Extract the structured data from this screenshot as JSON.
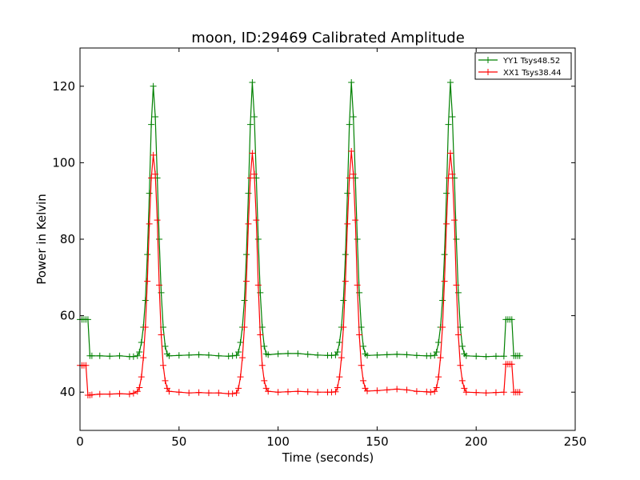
{
  "chart_data": {
    "type": "line",
    "title": "moon, ID:29469 Calibrated Amplitude",
    "xlabel": "Time (seconds)",
    "ylabel": "Power in Kelvin",
    "xlim": [
      0,
      250
    ],
    "ylim": [
      30,
      130
    ],
    "xticks": [
      0,
      50,
      100,
      150,
      200,
      250
    ],
    "yticks": [
      40,
      60,
      80,
      100,
      120
    ],
    "grid": false,
    "legend_position": "top-right",
    "marker": "+",
    "series": [
      {
        "name": "YY1 Tsys48.52",
        "color": "#008000",
        "x": [
          0,
          1,
          2,
          3,
          4,
          5,
          6,
          10,
          15,
          20,
          25,
          27,
          29,
          30,
          31,
          32,
          33,
          34,
          35,
          36,
          37,
          38,
          39,
          40,
          41,
          42,
          43,
          44,
          45,
          50,
          55,
          60,
          65,
          70,
          75,
          77,
          79,
          80,
          81,
          82,
          83,
          84,
          85,
          86,
          87,
          88,
          89,
          90,
          91,
          92,
          93,
          94,
          95,
          100,
          105,
          110,
          115,
          120,
          125,
          127,
          129,
          130,
          131,
          132,
          133,
          134,
          135,
          136,
          137,
          138,
          139,
          140,
          141,
          142,
          143,
          144,
          145,
          150,
          155,
          160,
          165,
          170,
          175,
          177,
          179,
          180,
          181,
          182,
          183,
          184,
          185,
          186,
          187,
          188,
          189,
          190,
          191,
          192,
          193,
          194,
          195,
          200,
          205,
          210,
          214,
          215,
          216,
          217,
          218,
          219,
          220,
          221,
          222
        ],
        "y": [
          59,
          59,
          59,
          59,
          59,
          49.5,
          49.5,
          49.5,
          49.4,
          49.5,
          49.3,
          49.3,
          49.5,
          50.5,
          53,
          57,
          64,
          76,
          92,
          110,
          120,
          112,
          96,
          80,
          66,
          57,
          52,
          50,
          49.5,
          49.6,
          49.7,
          49.8,
          49.7,
          49.5,
          49.4,
          49.5,
          49.6,
          50.5,
          53,
          57,
          64,
          76,
          92,
          110,
          121,
          112,
          96,
          80,
          66,
          57,
          52,
          50,
          49.8,
          50,
          50.1,
          50.1,
          49.9,
          49.7,
          49.6,
          49.6,
          49.7,
          50.5,
          53,
          57,
          64,
          76,
          92,
          110,
          121,
          112,
          96,
          80,
          66,
          57,
          52,
          50,
          49.6,
          49.7,
          49.8,
          49.9,
          49.8,
          49.6,
          49.5,
          49.5,
          49.6,
          50.5,
          53,
          57,
          64,
          76,
          92,
          110,
          121,
          112,
          96,
          80,
          66,
          57,
          52,
          50,
          49.5,
          49.4,
          49.3,
          49.4,
          49.4,
          59,
          59,
          59,
          59,
          49.5,
          49.5,
          49.5,
          49.5
        ]
      },
      {
        "name": "XX1 Tsys38.44",
        "color": "#ff0000",
        "x": [
          0,
          1,
          2,
          3,
          4,
          5,
          6,
          10,
          15,
          20,
          25,
          27,
          29,
          30,
          31,
          32,
          33,
          34,
          35,
          36,
          37,
          38,
          39,
          40,
          41,
          42,
          43,
          44,
          45,
          50,
          55,
          60,
          65,
          70,
          75,
          77,
          79,
          80,
          81,
          82,
          83,
          84,
          85,
          86,
          87,
          88,
          89,
          90,
          91,
          92,
          93,
          94,
          95,
          100,
          105,
          110,
          115,
          120,
          125,
          127,
          129,
          130,
          131,
          132,
          133,
          134,
          135,
          136,
          137,
          138,
          139,
          140,
          141,
          142,
          143,
          144,
          145,
          150,
          155,
          160,
          165,
          170,
          175,
          177,
          179,
          180,
          181,
          182,
          183,
          184,
          185,
          186,
          187,
          188,
          189,
          190,
          191,
          192,
          193,
          194,
          195,
          200,
          205,
          210,
          214,
          215,
          216,
          217,
          218,
          219,
          220,
          221,
          222
        ],
        "y": [
          47,
          47,
          47,
          47,
          39.2,
          39.2,
          39.3,
          39.5,
          39.5,
          39.6,
          39.5,
          39.7,
          40.2,
          41.2,
          44,
          49,
          57,
          69,
          84,
          96,
          102,
          97,
          85,
          68,
          55,
          47,
          43,
          41,
          40.2,
          40,
          39.8,
          39.9,
          39.8,
          39.8,
          39.6,
          39.6,
          39.8,
          41,
          44,
          49,
          57,
          69,
          84,
          96,
          102.5,
          97,
          85,
          68,
          55,
          47,
          43,
          41,
          40.2,
          40,
          40.1,
          40.2,
          40.1,
          40,
          40,
          40,
          40.1,
          41.2,
          44,
          49,
          57,
          69,
          84,
          96,
          103,
          97,
          85,
          68,
          55,
          47,
          43,
          41,
          40.3,
          40.4,
          40.6,
          40.8,
          40.6,
          40.2,
          40.1,
          40,
          40.2,
          41.2,
          44,
          49,
          57,
          69,
          84,
          96,
          102.5,
          97,
          85,
          68,
          55,
          47,
          43,
          41,
          40,
          39.9,
          39.8,
          39.9,
          40,
          47.3,
          47.3,
          47.3,
          47.3,
          40,
          40,
          40,
          40
        ]
      }
    ]
  }
}
